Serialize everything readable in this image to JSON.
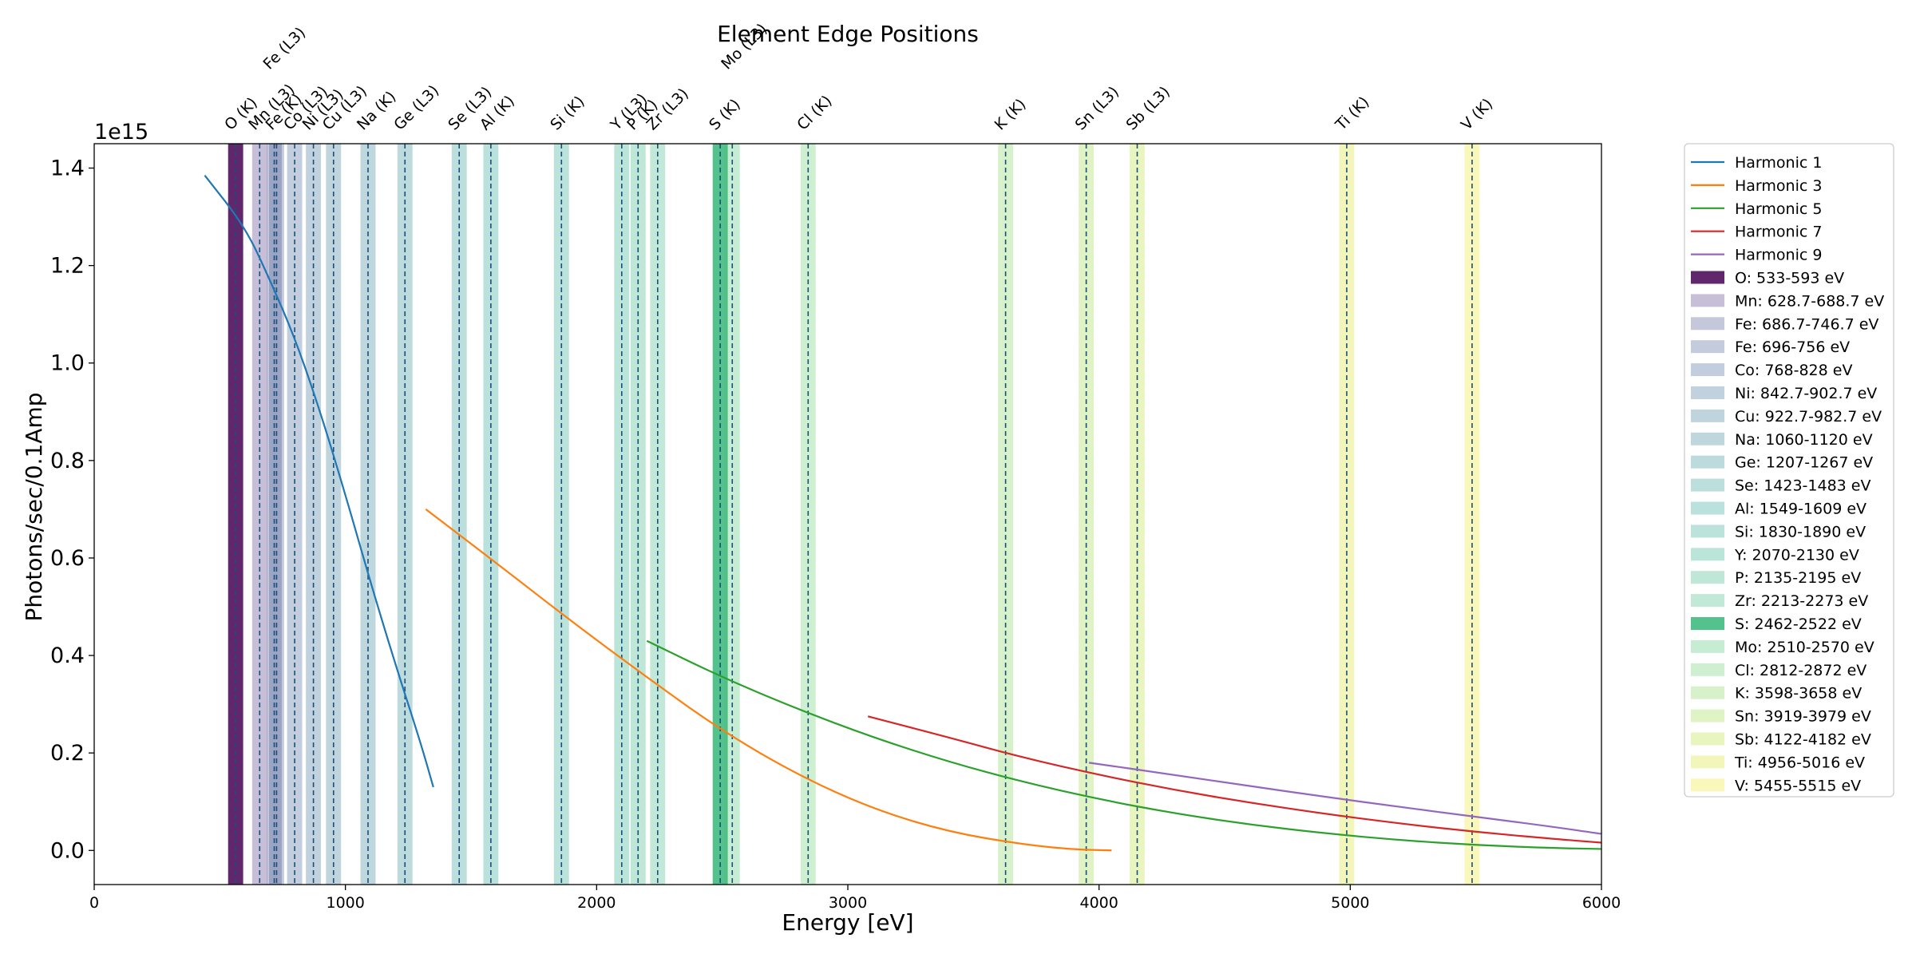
{
  "chart_data": {
    "type": "line",
    "title": "Element Edge Positions",
    "xlabel": "Energy [eV]",
    "ylabel": "Photons/sec/0.1Amp",
    "y_offset_label": "1e15",
    "xlim": [
      0,
      6000
    ],
    "ylim": [
      -0.07,
      1.45
    ],
    "x_ticks": [
      0,
      1000,
      2000,
      3000,
      4000,
      5000,
      6000
    ],
    "x_tick_labels": [
      "0",
      "1000",
      "2000",
      "3000",
      "4000",
      "5000",
      "6000"
    ],
    "y_ticks": [
      0.0,
      0.2,
      0.4,
      0.6,
      0.8,
      1.0,
      1.2,
      1.4
    ],
    "y_tick_labels": [
      "0.0",
      "0.2",
      "0.4",
      "0.6",
      "0.8",
      "1.0",
      "1.2",
      "1.4"
    ],
    "grid": false,
    "legend_position": "outside-right",
    "series": [
      {
        "name": "Harmonic 1",
        "color": "#1f77b4",
        "x": [
          440,
          600,
          700,
          800,
          900,
          1000,
          1100,
          1200,
          1300,
          1350
        ],
        "y": [
          1.385,
          1.28,
          1.17,
          1.05,
          0.9,
          0.73,
          0.55,
          0.38,
          0.22,
          0.13
        ]
      },
      {
        "name": "Harmonic 3",
        "color": "#ff7f0e",
        "x": [
          1320,
          1600,
          1900,
          2200,
          2500,
          2800,
          3100,
          3400,
          3700,
          3900,
          4050
        ],
        "y": [
          0.7,
          0.59,
          0.47,
          0.355,
          0.245,
          0.155,
          0.085,
          0.038,
          0.012,
          0.002,
          0.0
        ]
      },
      {
        "name": "Harmonic 5",
        "color": "#2ca02c",
        "x": [
          2200,
          2500,
          2800,
          3100,
          3400,
          3700,
          4000,
          4300,
          4600,
          4900,
          5200,
          5500,
          5800,
          6000
        ],
        "y": [
          0.43,
          0.355,
          0.29,
          0.232,
          0.182,
          0.14,
          0.105,
          0.076,
          0.053,
          0.035,
          0.021,
          0.011,
          0.005,
          0.003
        ]
      },
      {
        "name": "Harmonic 7",
        "color": "#d62728",
        "x": [
          3080,
          3400,
          3700,
          4000,
          4300,
          4600,
          4900,
          5200,
          5500,
          5800,
          6000
        ],
        "y": [
          0.275,
          0.232,
          0.19,
          0.155,
          0.124,
          0.098,
          0.075,
          0.055,
          0.038,
          0.024,
          0.016
        ]
      },
      {
        "name": "Harmonic 9",
        "color": "#9467bd",
        "x": [
          3960,
          4300,
          4600,
          4900,
          5200,
          5500,
          5800,
          6000
        ],
        "y": [
          0.18,
          0.155,
          0.132,
          0.11,
          0.089,
          0.069,
          0.049,
          0.034
        ]
      }
    ],
    "edges": [
      {
        "label": "O (K)",
        "edge": 563,
        "range": "533-593",
        "legend": "O: 533-593 eV",
        "color": "#440154",
        "alpha": 0.85
      },
      {
        "label": "Mn (L3)",
        "edge": 658.7,
        "range": "628.7-688.7",
        "legend": "Mn: 628.7-688.7 eV",
        "color": "#472c7a",
        "alpha": 0.3
      },
      {
        "label": "Fe (L3)",
        "edge": 716.7,
        "range": "686.7-746.7",
        "legend": "Fe: 686.7-746.7 eV",
        "color": "#3f4788",
        "alpha": 0.3
      },
      {
        "label": "Fe (K)",
        "edge": 726,
        "range": "696-756",
        "legend": "Fe: 696-756 eV",
        "color": "#3b528b",
        "alpha": 0.3
      },
      {
        "label": "Co (L3)",
        "edge": 798,
        "range": "768-828",
        "legend": "Co: 768-828 eV",
        "color": "#365c8d",
        "alpha": 0.3
      },
      {
        "label": "Ni (L3)",
        "edge": 872.7,
        "range": "842.7-902.7",
        "legend": "Ni: 842.7-902.7 eV",
        "color": "#31688e",
        "alpha": 0.3
      },
      {
        "label": "Cu (L3)",
        "edge": 952.7,
        "range": "922.7-982.7",
        "legend": "Cu: 922.7-982.7 eV",
        "color": "#2c728e",
        "alpha": 0.3
      },
      {
        "label": "Na (K)",
        "edge": 1090,
        "range": "1060-1120",
        "legend": "Na: 1060-1120 eV",
        "color": "#287c8e",
        "alpha": 0.3
      },
      {
        "label": "Ge (L3)",
        "edge": 1237,
        "range": "1207-1267",
        "legend": "Ge: 1207-1267 eV",
        "color": "#24868e",
        "alpha": 0.3
      },
      {
        "label": "Se (L3)",
        "edge": 1453,
        "range": "1423-1483",
        "legend": "Se: 1423-1483 eV",
        "color": "#21918c",
        "alpha": 0.3
      },
      {
        "label": "Al (K)",
        "edge": 1579,
        "range": "1549-1609",
        "legend": "Al: 1549-1609 eV",
        "color": "#1f9a8a",
        "alpha": 0.3
      },
      {
        "label": "Si (K)",
        "edge": 1860,
        "range": "1830-1890",
        "legend": "Si: 1830-1890 eV",
        "color": "#1fa187",
        "alpha": 0.3
      },
      {
        "label": "Y (L3)",
        "edge": 2100,
        "range": "2070-2130",
        "legend": "Y: 2070-2130 eV",
        "color": "#22a884",
        "alpha": 0.3
      },
      {
        "label": "P (K)",
        "edge": 2165,
        "range": "2135-2195",
        "legend": "P: 2135-2195 eV",
        "color": "#2ab07f",
        "alpha": 0.3
      },
      {
        "label": "Zr (L3)",
        "edge": 2243,
        "range": "2213-2273",
        "legend": "Zr: 2213-2273 eV",
        "color": "#35b779",
        "alpha": 0.3
      },
      {
        "label": "S (K)",
        "edge": 2492,
        "range": "2462-2522",
        "legend": "S: 2462-2522 eV",
        "color": "#35b779",
        "alpha": 0.85
      },
      {
        "label": "Mo (L3)",
        "edge": 2540,
        "range": "2510-2570",
        "legend": "Mo: 2510-2570 eV",
        "color": "#44bf70",
        "alpha": 0.3
      },
      {
        "label": "Cl (K)",
        "edge": 2842,
        "range": "2812-2872",
        "legend": "Cl: 2812-2872 eV",
        "color": "#5ec962",
        "alpha": 0.3
      },
      {
        "label": "K (K)",
        "edge": 3628,
        "range": "3598-3658",
        "legend": "K: 3598-3658 eV",
        "color": "#7ad151",
        "alpha": 0.3
      },
      {
        "label": "Sn (L3)",
        "edge": 3949,
        "range": "3919-3979",
        "legend": "Sn: 3919-3979 eV",
        "color": "#95d840",
        "alpha": 0.3
      },
      {
        "label": "Sb (L3)",
        "edge": 4152,
        "range": "4122-4182",
        "legend": "Sb: 4122-4182 eV",
        "color": "#b5de2b",
        "alpha": 0.3
      },
      {
        "label": "Ti (K)",
        "edge": 4986,
        "range": "4956-5016",
        "legend": "Ti: 4956-5016 eV",
        "color": "#d5e21a",
        "alpha": 0.3
      },
      {
        "label": "V (K)",
        "edge": 5485,
        "range": "5455-5515",
        "legend": "V: 5455-5515 eV",
        "color": "#f0e51c",
        "alpha": 0.3
      }
    ]
  }
}
